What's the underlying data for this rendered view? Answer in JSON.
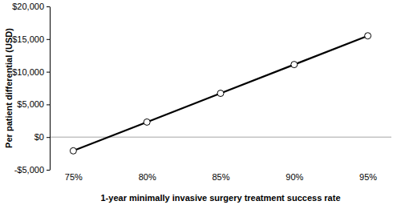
{
  "chart_data": {
    "type": "line",
    "x_label": "1-year minimally invasive surgery treatment success rate",
    "y_label": "Per patient differential (USD)",
    "categories": [
      "75%",
      "80%",
      "85%",
      "90%",
      "95%"
    ],
    "values": [
      -2100,
      2300,
      6700,
      11100,
      15500
    ],
    "color": "#000000",
    "marker": "circle",
    "line_style": "solid",
    "ylim": [
      -5000,
      20000
    ],
    "yticks": [
      {
        "value": -5000,
        "label": "-$5,000"
      },
      {
        "value": 0,
        "label": "$0"
      },
      {
        "value": 5000,
        "label": "$5,000"
      },
      {
        "value": 10000,
        "label": "$10,000"
      },
      {
        "value": 15000,
        "label": "$15,000"
      },
      {
        "value": 20000,
        "label": "$20,000"
      }
    ],
    "grid": false
  }
}
